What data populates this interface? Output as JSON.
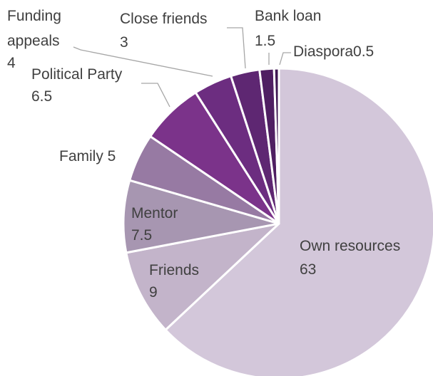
{
  "chart_data": {
    "type": "pie",
    "title": "",
    "start_angle_deg": 0,
    "direction": "clockwise",
    "slices": [
      {
        "name": "Own resources",
        "value": 63,
        "value_label": "63",
        "color": "#d3c7da",
        "label_color": "#404040",
        "label_inside": true
      },
      {
        "name": "Friends",
        "value": 9,
        "value_label": "9",
        "color": "#c3b4ca",
        "label_color": "#404040",
        "label_inside": true
      },
      {
        "name": "Mentor",
        "value": 7.5,
        "value_label": "7.5",
        "color": "#a796b1",
        "label_color": "#404040",
        "label_inside": true
      },
      {
        "name": "Family 5",
        "value": 5,
        "value_label": "",
        "color": "#977aa3",
        "label_color": "#404040",
        "label_inside": false
      },
      {
        "name": "Political Party",
        "value": 6.5,
        "value_label": "6.5",
        "color": "#7b338a",
        "label_color": "#404040",
        "label_inside": false
      },
      {
        "name": "Funding appeals",
        "value": 4,
        "value_label": "4",
        "color": "#6c2d80",
        "label_color": "#404040",
        "label_inside": false
      },
      {
        "name": "Close friends",
        "value": 3,
        "value_label": "3",
        "color": "#5e2772",
        "label_color": "#404040",
        "label_inside": false
      },
      {
        "name": "Bank loan",
        "value": 1.5,
        "value_label": "1.5",
        "color": "#4f1f62",
        "label_color": "#404040",
        "label_inside": false
      },
      {
        "name": "Diaspora0.5",
        "value": 0.5,
        "value_label": "",
        "color": "#3f1752",
        "label_color": "#404040",
        "label_inside": false
      }
    ]
  }
}
